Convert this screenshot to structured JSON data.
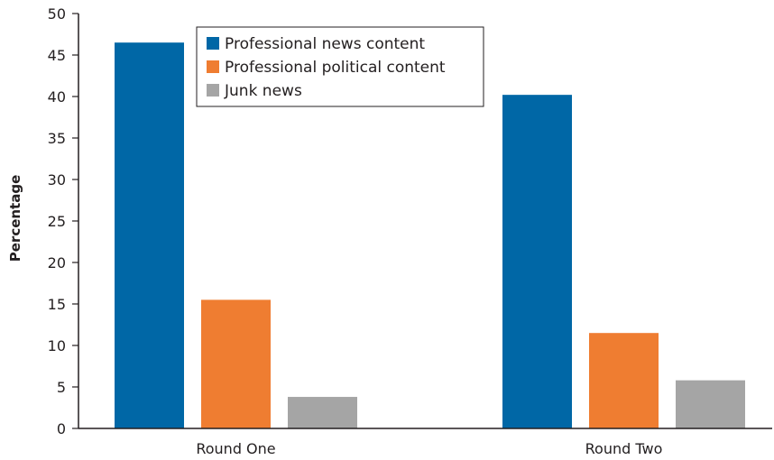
{
  "chart_data": {
    "type": "bar",
    "title": "",
    "xlabel": "",
    "ylabel": "Percentage",
    "ylim": [
      0,
      50
    ],
    "yticks": [
      0,
      5,
      10,
      15,
      20,
      25,
      30,
      35,
      40,
      45,
      50
    ],
    "categories": [
      "Round One",
      "Round Two"
    ],
    "series": [
      {
        "name": "Professional news content",
        "color": "#0067a6",
        "values": [
          46.5,
          40.2
        ]
      },
      {
        "name": "Professional political content",
        "color": "#ef7d31",
        "values": [
          15.5,
          11.5
        ]
      },
      {
        "name": "Junk news",
        "color": "#a5a5a5",
        "values": [
          3.8,
          5.8
        ]
      }
    ],
    "legend_position": "top-left",
    "grid": false
  }
}
